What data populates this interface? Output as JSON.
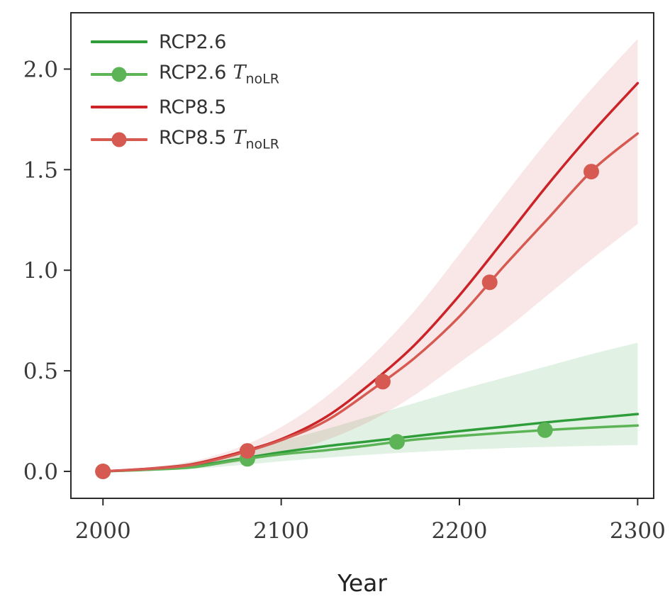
{
  "chart_data": {
    "type": "line",
    "title": "",
    "xlabel": "Year",
    "ylabel": "",
    "xlim": [
      1982,
      2309
    ],
    "ylim": [
      -0.134,
      2.28
    ],
    "xticks": [
      2000,
      2100,
      2200,
      2300
    ],
    "yticks": [
      "0.0",
      "0.5",
      "1.0",
      "1.5",
      "2.0"
    ],
    "grid": false,
    "legend_position": "upper-left",
    "x": [
      2000,
      2025,
      2050,
      2075,
      2100,
      2125,
      2150,
      2175,
      2200,
      2225,
      2250,
      2275,
      2300
    ],
    "series": [
      {
        "name": "RCP2.6",
        "color": "#2e9d3a",
        "values": [
          0,
          0.01,
          0.025,
          0.06,
          0.095,
          0.125,
          0.15,
          0.175,
          0.2,
          0.222,
          0.245,
          0.265,
          0.285
        ]
      },
      {
        "name": "RCP2.6 T_noLR",
        "color": "#5cb457",
        "values": [
          0,
          0.008,
          0.02,
          0.055,
          0.085,
          0.105,
          0.13,
          0.158,
          0.176,
          0.192,
          0.206,
          0.218,
          0.228
        ],
        "marker_x": [
          2000,
          2081,
          2165,
          2248
        ]
      },
      {
        "name": "RCP8.5",
        "color": "#cb2327",
        "values": [
          0,
          0.013,
          0.035,
          0.09,
          0.16,
          0.27,
          0.435,
          0.63,
          0.875,
          1.15,
          1.43,
          1.69,
          1.93
        ]
      },
      {
        "name": "RCP8.5 T_noLR",
        "color": "#d65a52",
        "values": [
          0,
          0.012,
          0.032,
          0.085,
          0.155,
          0.25,
          0.4,
          0.565,
          0.77,
          1.02,
          1.26,
          1.5,
          1.68
        ],
        "marker_x": [
          2000,
          2081,
          2157,
          2217,
          2274
        ]
      }
    ],
    "bands": [
      {
        "name": "RCP2.6 uncertainty band",
        "color": "#2e9d3a",
        "opacity": 0.14,
        "lower": [
          0,
          0.004,
          0.012,
          0.03,
          0.05,
          0.068,
          0.083,
          0.096,
          0.107,
          0.115,
          0.122,
          0.127,
          0.131
        ],
        "upper": [
          0,
          0.018,
          0.045,
          0.09,
          0.15,
          0.21,
          0.275,
          0.34,
          0.405,
          0.465,
          0.525,
          0.585,
          0.64
        ]
      },
      {
        "name": "RCP8.5 uncertainty band",
        "color": "#cb2327",
        "opacity": 0.11,
        "lower": [
          0,
          0.006,
          0.018,
          0.045,
          0.09,
          0.155,
          0.25,
          0.38,
          0.54,
          0.7,
          0.88,
          1.06,
          1.23
        ],
        "upper": [
          0,
          0.02,
          0.05,
          0.115,
          0.22,
          0.37,
          0.565,
          0.8,
          1.08,
          1.37,
          1.65,
          1.91,
          2.15
        ]
      }
    ],
    "legend": [
      {
        "prefix": "RCP2.6",
        "math_var": null,
        "math_sub": null,
        "color": "#2e9d3a",
        "marker": false
      },
      {
        "prefix": "RCP2.6",
        "math_var": "T",
        "math_sub": "noLR",
        "color": "#5cb457",
        "marker": true
      },
      {
        "prefix": "RCP8.5",
        "math_var": null,
        "math_sub": null,
        "color": "#cb2327",
        "marker": false
      },
      {
        "prefix": "RCP8.5",
        "math_var": "T",
        "math_sub": "noLR",
        "color": "#d65a52",
        "marker": true
      }
    ],
    "axis_color": "#2b2b2b",
    "tick_label_color": "#3a3a3a",
    "marker_radius": 11
  }
}
